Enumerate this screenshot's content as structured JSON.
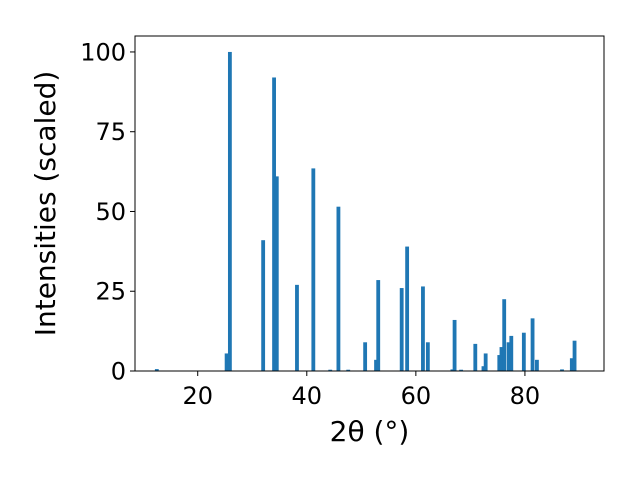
{
  "chart_data": {
    "type": "bar",
    "xlabel": "2θ (°)",
    "ylabel": "Intensities (scaled)",
    "xlim": [
      8.5,
      94.5
    ],
    "ylim": [
      0,
      105
    ],
    "xticks": [
      20,
      40,
      60,
      80
    ],
    "yticks": [
      0,
      25,
      50,
      75,
      100
    ],
    "bar_color": "#1f77b4",
    "bar_width": 0.7,
    "bars": [
      {
        "x": 12.5,
        "y": 0.6
      },
      {
        "x": 25.3,
        "y": 5.5
      },
      {
        "x": 25.9,
        "y": 100
      },
      {
        "x": 32.0,
        "y": 41
      },
      {
        "x": 34.0,
        "y": 92
      },
      {
        "x": 34.5,
        "y": 61
      },
      {
        "x": 38.2,
        "y": 27
      },
      {
        "x": 41.2,
        "y": 63.5
      },
      {
        "x": 44.3,
        "y": 0.4
      },
      {
        "x": 45.8,
        "y": 51.5
      },
      {
        "x": 47.6,
        "y": 0.4
      },
      {
        "x": 50.7,
        "y": 9
      },
      {
        "x": 52.7,
        "y": 3.5
      },
      {
        "x": 53.1,
        "y": 28.5
      },
      {
        "x": 57.4,
        "y": 26
      },
      {
        "x": 58.4,
        "y": 39
      },
      {
        "x": 61.3,
        "y": 26.5
      },
      {
        "x": 62.2,
        "y": 9
      },
      {
        "x": 66.7,
        "y": 0.5
      },
      {
        "x": 67.1,
        "y": 16
      },
      {
        "x": 68.3,
        "y": 0.4
      },
      {
        "x": 70.9,
        "y": 8.5
      },
      {
        "x": 72.4,
        "y": 1.5
      },
      {
        "x": 72.8,
        "y": 5.5
      },
      {
        "x": 75.3,
        "y": 5
      },
      {
        "x": 75.7,
        "y": 7.5
      },
      {
        "x": 76.2,
        "y": 22.5
      },
      {
        "x": 77.0,
        "y": 9
      },
      {
        "x": 77.5,
        "y": 11
      },
      {
        "x": 79.8,
        "y": 12
      },
      {
        "x": 81.4,
        "y": 16.5
      },
      {
        "x": 82.2,
        "y": 3.5
      },
      {
        "x": 86.8,
        "y": 0.5
      },
      {
        "x": 88.6,
        "y": 4
      },
      {
        "x": 89.1,
        "y": 9.5
      }
    ]
  }
}
